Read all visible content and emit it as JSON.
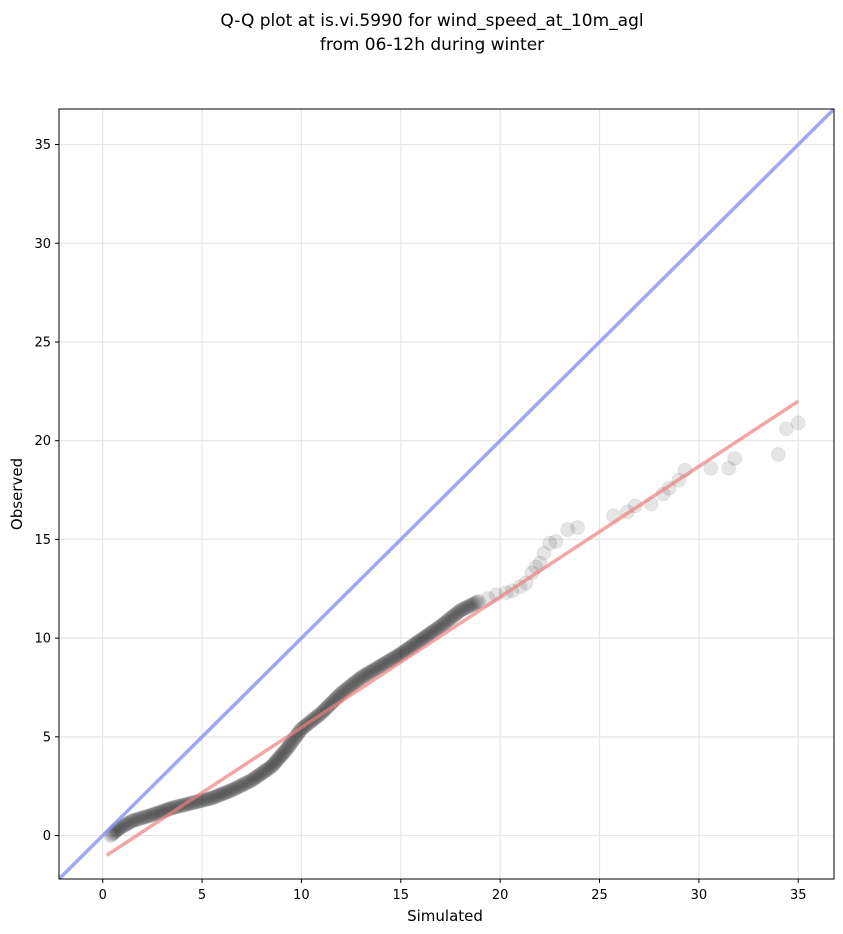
{
  "chart_data": {
    "type": "scatter",
    "title_lines": [
      "Q-Q plot at is.vi.5990 for wind_speed_at_10m_agl",
      "from 06-12h during winter"
    ],
    "xlabel": "Simulated",
    "ylabel": "Observed",
    "xlim": [
      -2.2,
      36.8
    ],
    "ylim": [
      -2.2,
      36.8
    ],
    "xticks": [
      0,
      5,
      10,
      15,
      20,
      25,
      30,
      35
    ],
    "yticks": [
      0,
      5,
      10,
      15,
      20,
      25,
      30,
      35
    ],
    "grid": true,
    "quantile_curve": [
      [
        0.4,
        0.0
      ],
      [
        0.8,
        0.35
      ],
      [
        1.5,
        0.75
      ],
      [
        2.5,
        1.05
      ],
      [
        3.5,
        1.4
      ],
      [
        4.5,
        1.65
      ],
      [
        5.5,
        1.9
      ],
      [
        6.5,
        2.3
      ],
      [
        7.5,
        2.8
      ],
      [
        8.5,
        3.5
      ],
      [
        9.2,
        4.3
      ],
      [
        10.0,
        5.4
      ],
      [
        11.0,
        6.2
      ],
      [
        12.0,
        7.2
      ],
      [
        13.0,
        8.0
      ],
      [
        14.0,
        8.6
      ],
      [
        15.0,
        9.2
      ],
      [
        16.0,
        9.9
      ],
      [
        17.0,
        10.6
      ],
      [
        18.0,
        11.4
      ],
      [
        19.0,
        11.9
      ]
    ],
    "tail_points": [
      [
        19.4,
        12.0
      ],
      [
        19.8,
        12.2
      ],
      [
        20.3,
        12.3
      ],
      [
        20.6,
        12.4
      ],
      [
        21.0,
        12.6
      ],
      [
        21.3,
        12.8
      ],
      [
        21.6,
        13.3
      ],
      [
        21.8,
        13.6
      ],
      [
        22.0,
        13.8
      ],
      [
        22.2,
        14.3
      ],
      [
        22.5,
        14.8
      ],
      [
        22.8,
        14.9
      ],
      [
        23.4,
        15.5
      ],
      [
        23.9,
        15.6
      ],
      [
        25.7,
        16.2
      ],
      [
        26.4,
        16.4
      ],
      [
        26.8,
        16.7
      ],
      [
        27.6,
        16.8
      ],
      [
        28.2,
        17.3
      ],
      [
        28.5,
        17.6
      ],
      [
        29.0,
        18.0
      ],
      [
        29.3,
        18.5
      ],
      [
        30.6,
        18.6
      ],
      [
        31.5,
        18.6
      ],
      [
        31.8,
        19.1
      ],
      [
        34.0,
        19.3
      ],
      [
        34.4,
        20.6
      ],
      [
        35.0,
        20.9
      ]
    ],
    "fit_line": {
      "color": "#f08080",
      "points": [
        [
          0.2,
          -1.0
        ],
        [
          35.0,
          22.0
        ]
      ]
    },
    "identity_line": {
      "color": "#8890f0",
      "points": [
        [
          -2.2,
          -2.2
        ],
        [
          36.8,
          36.8
        ]
      ]
    },
    "point_color": "#000000"
  }
}
